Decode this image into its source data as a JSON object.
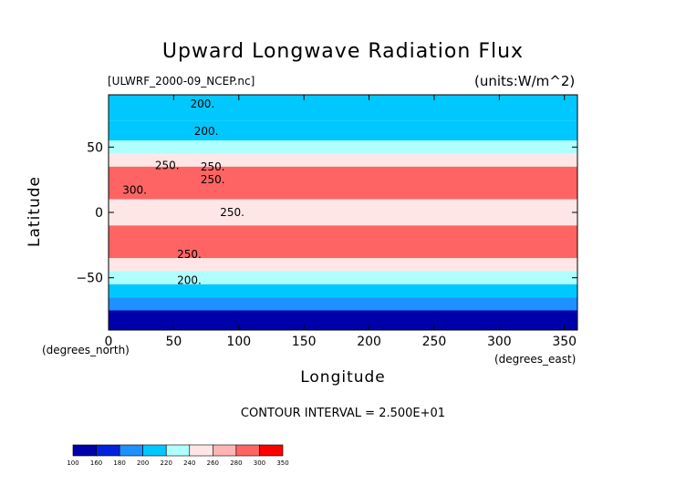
{
  "chart_data": {
    "type": "heatmap",
    "title": "Upward Longwave Radiation Flux",
    "source_label": "[ULWRF_2000-09_NCEP.nc]",
    "units_label": "(units:W/m^2)",
    "xlabel": "Longitude",
    "ylabel": "Latitude",
    "x_units": "(degrees_north)",
    "x_units_2": "(degrees_east)",
    "xlim": [
      0,
      360
    ],
    "ylim": [
      -90,
      90
    ],
    "x_ticks": [
      0,
      50,
      100,
      150,
      200,
      250,
      300,
      350
    ],
    "y_ticks": [
      -50,
      0,
      50
    ],
    "contour_interval_text": "CONTOUR INTERVAL = 2.500E+01",
    "contour_labels": [
      {
        "text": "200.",
        "lon": 72,
        "lat": 83
      },
      {
        "text": "200.",
        "lon": 75,
        "lat": 62
      },
      {
        "text": "250.",
        "lon": 45,
        "lat": 36
      },
      {
        "text": "300.",
        "lon": 20,
        "lat": 17
      },
      {
        "text": "250.",
        "lon": 80,
        "lat": 35
      },
      {
        "text": "250.",
        "lon": 80,
        "lat": 25
      },
      {
        "text": "250.",
        "lon": 95,
        "lat": 0
      },
      {
        "text": "250.",
        "lon": 62,
        "lat": -32
      },
      {
        "text": "200.",
        "lon": 62,
        "lat": -52
      }
    ],
    "colorbar": {
      "tick_labels": [
        "100",
        "160",
        "180",
        "200",
        "220",
        "240",
        "260",
        "280",
        "300",
        "350"
      ],
      "colors": [
        "#0000aa",
        "#0022dd",
        "#1e90ff",
        "#00c8ff",
        "#afffff",
        "#ffe6e6",
        "#ffb4b4",
        "#ff6464",
        "#ff0000"
      ]
    },
    "lat_band_values": [
      {
        "lat_min": 70,
        "lat_max": 90,
        "value": 205
      },
      {
        "lat_min": 55,
        "lat_max": 70,
        "value": 215
      },
      {
        "lat_min": 45,
        "lat_max": 55,
        "value": 235
      },
      {
        "lat_min": 35,
        "lat_max": 45,
        "value": 255
      },
      {
        "lat_min": 10,
        "lat_max": 35,
        "value": 290
      },
      {
        "lat_min": -10,
        "lat_max": 10,
        "value": 255
      },
      {
        "lat_min": -35,
        "lat_max": -10,
        "value": 285
      },
      {
        "lat_min": -45,
        "lat_max": -35,
        "value": 250
      },
      {
        "lat_min": -55,
        "lat_max": -45,
        "value": 225
      },
      {
        "lat_min": -65,
        "lat_max": -55,
        "value": 210
      },
      {
        "lat_min": -75,
        "lat_max": -65,
        "value": 180
      },
      {
        "lat_min": -90,
        "lat_max": -75,
        "value": 150
      }
    ]
  }
}
